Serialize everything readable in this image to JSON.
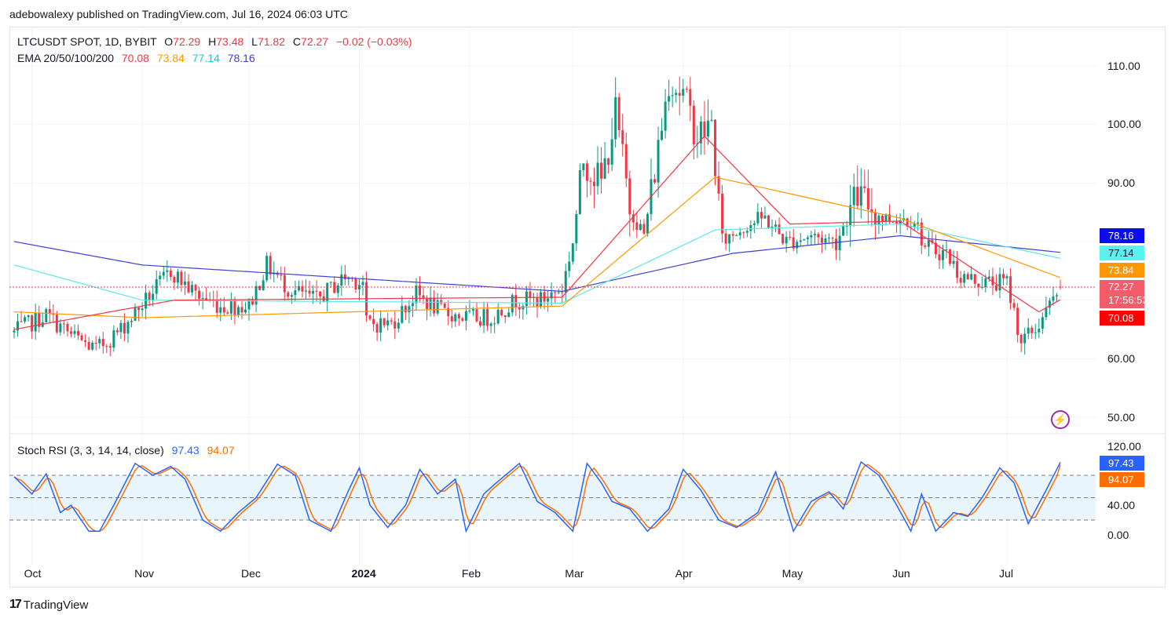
{
  "header": {
    "published": "adebowalexy published on TradingView.com, Jul 16, 2024 06:03 UTC"
  },
  "legend": {
    "symbol": "LTCUSDT SPOT, 1D, BYBIT",
    "o_label": "O",
    "o_value": "72.29",
    "h_label": "H",
    "h_value": "73.48",
    "l_label": "L",
    "l_value": "71.82",
    "c_label": "C",
    "c_value": "72.27",
    "change": "−0.02 (−0.03%)",
    "ema_label": "EMA 20/50/100/200",
    "ema20": "70.08",
    "ema50": "73.84",
    "ema100": "77.14",
    "ema200": "78.16"
  },
  "stoch": {
    "label": "Stoch RSI (3, 3, 14, 14, close)",
    "k": "97.43",
    "d": "94.07"
  },
  "price_badges": {
    "ema200": "78.16",
    "ema100": "77.14",
    "ema50": "73.84",
    "last": "72.27",
    "countdown": "17:56:53",
    "ema20": "70.08"
  },
  "stoch_badges": {
    "k": "97.43",
    "d": "94.07"
  },
  "footer": {
    "brand": "TradingView",
    "logo": "17"
  },
  "colors": {
    "up": "#089981",
    "down": "#f23645",
    "ema20": "#f23645",
    "ema50": "#ff9800",
    "ema100": "#5ce8e8",
    "ema200": "#3f3fd6",
    "k": "#2962ff",
    "d": "#ff6d00"
  },
  "chart_data": [
    {
      "type": "candlestick",
      "title": "LTCUSDT SPOT, 1D, BYBIT",
      "y_axis_ticks": [
        "110.00",
        "100.00",
        "90.00",
        "60.00",
        "50.00"
      ],
      "ylim": [
        47,
        113
      ],
      "x_axis_ticks": [
        "Oct",
        "Nov",
        "Dec",
        "2024",
        "Feb",
        "Mar",
        "Apr",
        "May",
        "Jun",
        "Jul"
      ],
      "close_anchors": [
        [
          "2023-09-26",
          64.5
        ],
        [
          "2023-10-05",
          67.5
        ],
        [
          "2023-10-12",
          64
        ],
        [
          "2023-10-19",
          61.5
        ],
        [
          "2023-10-26",
          65
        ],
        [
          "2023-11-02",
          70
        ],
        [
          "2023-11-09",
          75
        ],
        [
          "2023-11-16",
          71
        ],
        [
          "2023-11-23",
          69
        ],
        [
          "2023-12-01",
          69
        ],
        [
          "2023-12-06",
          76
        ],
        [
          "2023-12-12",
          72
        ],
        [
          "2023-12-20",
          70
        ],
        [
          "2023-12-28",
          74
        ],
        [
          "2024-01-02",
          73
        ],
        [
          "2024-01-03",
          66
        ],
        [
          "2024-01-10",
          66
        ],
        [
          "2024-01-17",
          71
        ],
        [
          "2024-01-24",
          68
        ],
        [
          "2024-01-31",
          67
        ],
        [
          "2024-02-07",
          67
        ],
        [
          "2024-02-14",
          70
        ],
        [
          "2024-02-21",
          70
        ],
        [
          "2024-02-27",
          72
        ],
        [
          "2024-03-01",
          80
        ],
        [
          "2024-03-04",
          94
        ],
        [
          "2024-03-09",
          90
        ],
        [
          "2024-03-13",
          102
        ],
        [
          "2024-03-17",
          86
        ],
        [
          "2024-03-21",
          81
        ],
        [
          "2024-03-25",
          96
        ],
        [
          "2024-03-28",
          108
        ],
        [
          "2024-04-01",
          105
        ],
        [
          "2024-04-05",
          98
        ],
        [
          "2024-04-09",
          100
        ],
        [
          "2024-04-12",
          80
        ],
        [
          "2024-04-19",
          83
        ],
        [
          "2024-04-24",
          84
        ],
        [
          "2024-04-30",
          80
        ],
        [
          "2024-05-07",
          81
        ],
        [
          "2024-05-14",
          80
        ],
        [
          "2024-05-20",
          88
        ],
        [
          "2024-05-27",
          84
        ],
        [
          "2024-06-05",
          84
        ],
        [
          "2024-06-08",
          79
        ],
        [
          "2024-06-14",
          78
        ],
        [
          "2024-06-18",
          74
        ],
        [
          "2024-06-25",
          73
        ],
        [
          "2024-07-01",
          73
        ],
        [
          "2024-07-05",
          63
        ],
        [
          "2024-07-09",
          65
        ],
        [
          "2024-07-14",
          70
        ],
        [
          "2024-07-16",
          72.27
        ]
      ],
      "ema200_anchors": [
        [
          "2023-09-26",
          80
        ],
        [
          "2023-11-01",
          76
        ],
        [
          "2024-02-27",
          71.5
        ],
        [
          "2024-04-15",
          78
        ],
        [
          "2024-06-01",
          81
        ],
        [
          "2024-07-16",
          78.16
        ]
      ],
      "ema100_anchors": [
        [
          "2023-09-26",
          76
        ],
        [
          "2023-11-01",
          70
        ],
        [
          "2024-02-27",
          69.5
        ],
        [
          "2024-04-10",
          82
        ],
        [
          "2024-06-01",
          83
        ],
        [
          "2024-07-16",
          77.14
        ]
      ],
      "ema50_anchors": [
        [
          "2023-09-26",
          68
        ],
        [
          "2023-11-01",
          67
        ],
        [
          "2024-02-27",
          69
        ],
        [
          "2024-04-10",
          91
        ],
        [
          "2024-06-01",
          84
        ],
        [
          "2024-07-16",
          73.84
        ]
      ],
      "ema20_anchors": [
        [
          "2023-09-26",
          65
        ],
        [
          "2023-11-10",
          70
        ],
        [
          "2024-02-27",
          70.5
        ],
        [
          "2024-04-07",
          98
        ],
        [
          "2024-05-01",
          83
        ],
        [
          "2024-06-01",
          83.5
        ],
        [
          "2024-07-10",
          68
        ],
        [
          "2024-07-16",
          70.08
        ]
      ]
    },
    {
      "type": "line",
      "title": "Stoch RSI (3, 3, 14, 14, close)",
      "y_axis_ticks": [
        "120.00",
        "40.00",
        "0.00"
      ],
      "ylim": [
        -10,
        120
      ],
      "bands": {
        "upper": 80,
        "middle": 50,
        "lower": 20
      },
      "series": [
        {
          "name": "K",
          "last": 97.43
        },
        {
          "name": "D",
          "last": 94.07
        }
      ],
      "k_anchors": [
        [
          "2023-09-26",
          78
        ],
        [
          "2023-10-01",
          55
        ],
        [
          "2023-10-05",
          82
        ],
        [
          "2023-10-09",
          30
        ],
        [
          "2023-10-12",
          40
        ],
        [
          "2023-10-17",
          5
        ],
        [
          "2023-10-20",
          5
        ],
        [
          "2023-10-24",
          40
        ],
        [
          "2023-10-30",
          96
        ],
        [
          "2023-11-04",
          80
        ],
        [
          "2023-11-09",
          92
        ],
        [
          "2023-11-13",
          75
        ],
        [
          "2023-11-18",
          20
        ],
        [
          "2023-11-23",
          5
        ],
        [
          "2023-11-28",
          30
        ],
        [
          "2023-12-03",
          50
        ],
        [
          "2023-12-09",
          95
        ],
        [
          "2023-12-14",
          80
        ],
        [
          "2023-12-18",
          20
        ],
        [
          "2023-12-24",
          5
        ],
        [
          "2023-12-29",
          60
        ],
        [
          "2024-01-01",
          90
        ],
        [
          "2024-01-04",
          40
        ],
        [
          "2024-01-09",
          10
        ],
        [
          "2024-01-14",
          40
        ],
        [
          "2024-01-18",
          88
        ],
        [
          "2024-01-23",
          55
        ],
        [
          "2024-01-28",
          75
        ],
        [
          "2024-01-31",
          5
        ],
        [
          "2024-02-05",
          55
        ],
        [
          "2024-02-09",
          72
        ],
        [
          "2024-02-15",
          96
        ],
        [
          "2024-02-20",
          45
        ],
        [
          "2024-02-25",
          30
        ],
        [
          "2024-03-01",
          5
        ],
        [
          "2024-03-05",
          96
        ],
        [
          "2024-03-09",
          70
        ],
        [
          "2024-03-12",
          45
        ],
        [
          "2024-03-17",
          35
        ],
        [
          "2024-03-22",
          5
        ],
        [
          "2024-03-28",
          35
        ],
        [
          "2024-04-01",
          88
        ],
        [
          "2024-04-06",
          60
        ],
        [
          "2024-04-11",
          20
        ],
        [
          "2024-04-16",
          10
        ],
        [
          "2024-04-22",
          30
        ],
        [
          "2024-04-27",
          85
        ],
        [
          "2024-05-02",
          5
        ],
        [
          "2024-05-07",
          45
        ],
        [
          "2024-05-12",
          58
        ],
        [
          "2024-05-16",
          35
        ],
        [
          "2024-05-21",
          98
        ],
        [
          "2024-05-26",
          80
        ],
        [
          "2024-05-31",
          40
        ],
        [
          "2024-06-04",
          5
        ],
        [
          "2024-06-07",
          55
        ],
        [
          "2024-06-11",
          5
        ],
        [
          "2024-06-16",
          30
        ],
        [
          "2024-06-20",
          25
        ],
        [
          "2024-06-24",
          50
        ],
        [
          "2024-06-29",
          90
        ],
        [
          "2024-07-03",
          70
        ],
        [
          "2024-07-07",
          15
        ],
        [
          "2024-07-12",
          60
        ],
        [
          "2024-07-16",
          97.43
        ]
      ]
    }
  ]
}
